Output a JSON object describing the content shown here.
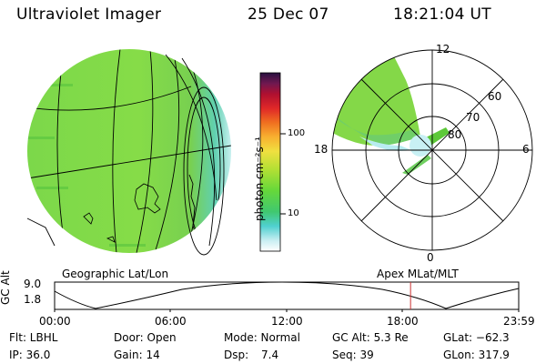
{
  "header": {
    "instrument": "Ultraviolet Imager",
    "date": "25 Dec 07",
    "time": "18:21:04 UT"
  },
  "colors": {
    "accent_line": "#cc3333"
  },
  "colorbar": {
    "label": "photon cm⁻²s⁻¹",
    "ticks": [
      "100",
      "10"
    ]
  },
  "polar_plot": {
    "mlt_labels": [
      "12",
      "18",
      "6",
      "0"
    ],
    "lat_labels": [
      "60",
      "70",
      "80"
    ]
  },
  "projection_labels": {
    "left": "Geographic Lat/Lon",
    "right": "Apex MLat/MLT"
  },
  "altitude_plot": {
    "axis_label": "GC Alt",
    "y_ticks": [
      "9.0",
      "1.8"
    ],
    "x_ticks": [
      "00:00",
      "06:00",
      "12:00",
      "18:00",
      "23:59"
    ],
    "current_time_fraction": 0.767
  },
  "info": {
    "filter": "Flt: LBHL",
    "door": "Door: Open",
    "mode": "Mode: Normal",
    "gc_alt": "GC Alt: 5.3 Re",
    "glat": "GLat: −62.3",
    "ip": "IP: 36.0",
    "gain": "Gain: 14",
    "dsp_label": "Dsp:",
    "dsp_value": "7.4",
    "seq": "Seq: 39",
    "glon": "GLon: 317.9"
  }
}
